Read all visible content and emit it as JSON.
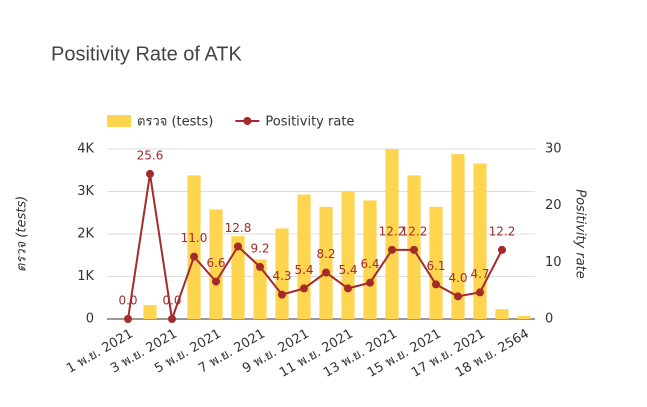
{
  "chart_data": {
    "type": "bar-line",
    "title": "Positivity Rate of ATK",
    "categories": [
      "1 พ.ย. 2021",
      null,
      "3 พ.ย. 2021",
      null,
      "5 พ.ย. 2021",
      null,
      "7 พ.ย. 2021",
      null,
      "9 พ.ย. 2021",
      null,
      "11 พ.ย. 2021",
      null,
      "13 พ.ย. 2021",
      null,
      "15 พ.ย. 2021",
      null,
      "17 พ.ย. 2021",
      null,
      "18 พ.ย. 2564"
    ],
    "y_label": "ตรวจ (tests)",
    "y2_label": "Positivity rate",
    "series": [
      {
        "name": "ตรวจ (tests)",
        "color": "#ffd54f",
        "kind": "bar",
        "values": [
          0,
          330,
          0,
          3380,
          2580,
          1950,
          1400,
          2130,
          2930,
          2640,
          3010,
          2790,
          4000,
          3380,
          2640,
          3880,
          3660,
          230,
          70
        ]
      },
      {
        "name": "Positivity rate",
        "color": "#a52a2a",
        "kind": "line",
        "axis": "y2",
        "values": [
          0,
          25.6,
          0,
          11,
          6.6,
          12.8,
          9.2,
          4.3,
          5.4,
          8.2,
          5.4,
          6.4,
          12.2,
          12.2,
          6.1,
          4,
          4.7,
          12.2,
          null
        ],
        "value_labels": [
          "0.0",
          "25.6",
          "0.0",
          "11.0",
          "6.6",
          "12.8",
          "9.2",
          "4.3",
          "5.4",
          "8.2",
          "5.4",
          "6.4",
          "12.2",
          "12.2",
          "6.1",
          "4.0",
          "4.7",
          "12.2",
          null
        ]
      }
    ],
    "ylim": [
      0,
      4000
    ],
    "yticks": [
      0,
      {
        "value": 1000,
        "label": "1K"
      },
      {
        "value": 2000,
        "label": "2K"
      },
      {
        "value": 3000,
        "label": "3K"
      },
      {
        "value": 4000,
        "label": "4K"
      }
    ],
    "y2lim": [
      0,
      30
    ],
    "y2ticks": [
      0,
      10,
      20,
      30
    ],
    "grid": true,
    "legend": "top"
  }
}
